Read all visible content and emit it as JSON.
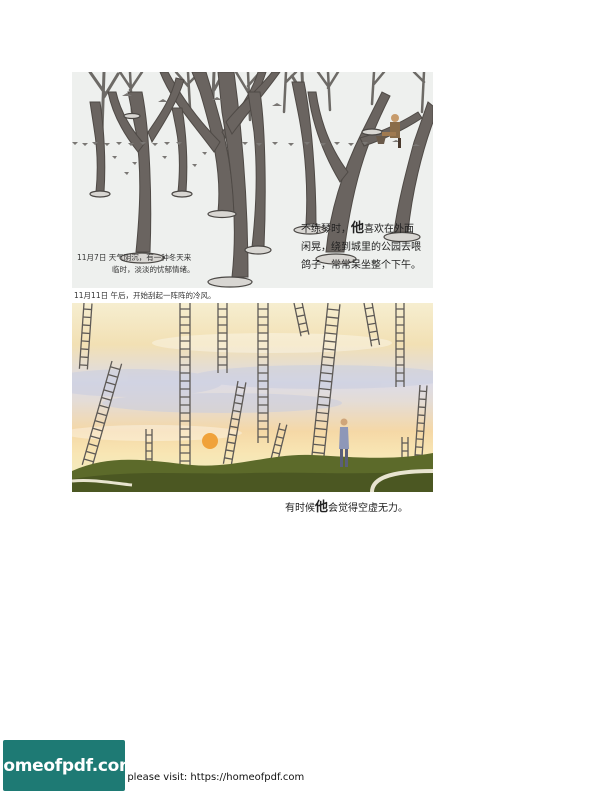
{
  "illustration_park": {
    "caption_line1": "11月7日  天气阴沉，有一种冬天来",
    "caption_line2": "临时，淡淡的忧郁情绪。",
    "text_line1_a": "不练琴时，",
    "text_line1_b": "他",
    "text_line1_c": "喜欢在外面",
    "text_line2": "闲晃，绕到城里的公园去喂",
    "text_line3": "鸽子，常常呆坐整个下午。"
  },
  "mid_caption": "11月11日  午后，开始刮起一阵阵的冷风。",
  "illustration_sky": {
    "caption_a": "有时候",
    "caption_b": "他",
    "caption_c": "会觉得空虚无力。"
  },
  "footer": {
    "logo_text": "homeofpdf.com",
    "visit_text": "e please visit: https://homeofpdf.com"
  }
}
